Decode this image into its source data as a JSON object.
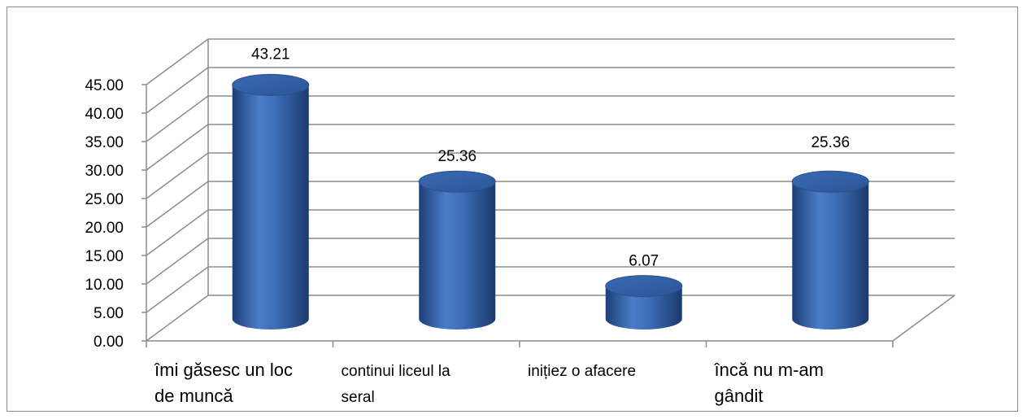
{
  "chart_data": {
    "type": "bar",
    "style": "3d-cylinder",
    "categories": [
      [
        "îmi găsesc un loc",
        "de muncă"
      ],
      [
        "continui liceul la",
        "seral"
      ],
      [
        "inițiez o afacere"
      ],
      [
        "încă nu m-am",
        "gândit"
      ]
    ],
    "values": [
      43.21,
      25.36,
      6.07,
      25.36
    ],
    "data_labels": [
      "43.21",
      "25.36",
      "6.07",
      "25.36"
    ],
    "ylim": [
      0,
      45
    ],
    "yticks": [
      "0.00",
      "5.00",
      "10.00",
      "15.00",
      "20.00",
      "25.00",
      "30.00",
      "35.00",
      "40.00",
      "45.00"
    ],
    "grid": true,
    "legend": "none",
    "bar_color": "#4472c4"
  }
}
